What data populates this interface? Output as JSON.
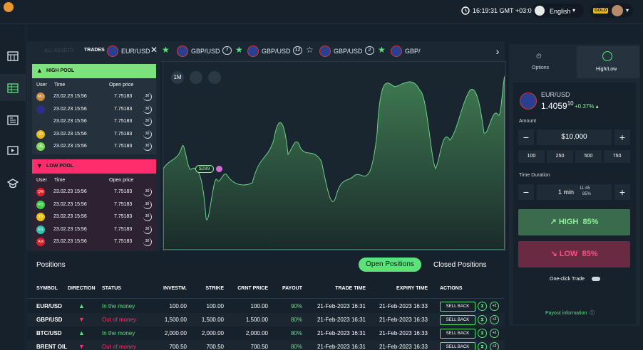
{
  "header": {
    "time": "16:19:31 GMT +03:00",
    "language": "English",
    "badge": "GOLD"
  },
  "asset_tabs": {
    "search": "ALL ASSETS",
    "tabs": [
      {
        "label": "EUR/USD"
      },
      {
        "label": "GBP/USD",
        "count": 7
      },
      {
        "label": "GBP/USD",
        "count": 12
      },
      {
        "label": "GBP/USD",
        "count": 2
      },
      {
        "label": "GBP/"
      }
    ]
  },
  "trades": {
    "title": "TRADES",
    "pools": [
      {
        "title": "HIGH POOL",
        "kind": "high",
        "columns": [
          "User",
          "Time",
          "Open price"
        ],
        "rows": [
          {
            "user": "MU",
            "avatar_color": "#c98a3a",
            "time": "23.02.23 15:56",
            "price": "7.75183",
            "timer": "30"
          },
          {
            "avatar_color": "#2b2f8a",
            "time": "23.02.23 15:56",
            "price": "7.75183",
            "timer": "30"
          },
          {
            "time": "23.02.23 15:56",
            "price": "7.75183",
            "timer": "30"
          },
          {
            "user": "IO",
            "avatar_color": "#e8b923",
            "time": "23.02.23 15:56",
            "price": "7.75183",
            "timer": "30"
          },
          {
            "user": "UE",
            "avatar_color": "#7dd957",
            "time": "23.02.23 15:56",
            "price": "7.75183",
            "timer": "30"
          }
        ]
      },
      {
        "title": "LOW POOL",
        "kind": "low",
        "columns": [
          "User",
          "Time",
          "Open price"
        ],
        "rows": [
          {
            "user": "QW",
            "avatar_color": "#d9202a",
            "time": "23.02.23 15:56",
            "price": "7.75183",
            "timer": "30"
          },
          {
            "user": "PO",
            "avatar_color": "#3fcf4a",
            "time": "23.02.23 15:56",
            "price": "7.75183",
            "timer": "30"
          },
          {
            "user": "TS",
            "avatar_color": "#e8c020",
            "time": "23.02.23 15:56",
            "price": "7.75183",
            "timer": "30"
          },
          {
            "user": "ES",
            "avatar_color": "#2ec4b0",
            "time": "23.02.23 15:56",
            "price": "7.75183",
            "timer": "30"
          },
          {
            "user": "AM",
            "avatar_color": "#d9202a",
            "time": "23.02.23 15:56",
            "price": "7.75183",
            "timer": "30"
          }
        ]
      }
    ]
  },
  "chart": {
    "interval": "1M",
    "price_marker": "$289"
  },
  "trade_panel": {
    "tabs": [
      "Options",
      "High/Low"
    ],
    "asset": "EUR/USD",
    "price": "1.4059",
    "price_sup": "10",
    "change": "+0.37%",
    "amount_label": "Amount",
    "amount": "$10,000",
    "presets": [
      "100",
      "250",
      "500",
      "750"
    ],
    "duration_label": "Time Duration",
    "duration": "1 min",
    "duration_time": "11:45",
    "duration_payout": "85%",
    "high": {
      "label": "HIGH",
      "payout": "85%"
    },
    "low": {
      "label": "LOW",
      "payout": "85%"
    },
    "one_click": "One-click Trade",
    "payout_info": "Payout information"
  },
  "positions": {
    "title": "Positions",
    "tabs": [
      "Open Positions",
      "Closed Positions"
    ],
    "columns": [
      "SYMBOL",
      "DIRECTION",
      "STATUS",
      "INVESTM.",
      "STRIKE",
      "CRNT PRICE",
      "PAYOUT",
      "TRADE TIME",
      "EXPIRY TIME",
      "ACTIONS"
    ],
    "action": "SELL BACK",
    "extend": "+2",
    "rows": [
      {
        "symbol": "EUR/USD",
        "direction": "up",
        "status": "In the money",
        "investment": "100.00",
        "strike": "100.00",
        "current": "100.00",
        "payout": "90%",
        "trade_time": "21-Feb-2023 16:31",
        "expiry_time": "21-Feb-2023 16:33"
      },
      {
        "symbol": "GBP/USD",
        "direction": "down",
        "status": "Out of money",
        "investment": "1,500.00",
        "strike": "1,500.00",
        "current": "1,500.00",
        "payout": "80%",
        "trade_time": "21-Feb-2023 16:31",
        "expiry_time": "21-Feb-2023 16:33"
      },
      {
        "symbol": "BTC/USD",
        "direction": "up",
        "status": "In the money",
        "investment": "2,000.00",
        "strike": "2,000.00",
        "current": "2,000.00",
        "payout": "80%",
        "trade_time": "21-Feb-2023 16:31",
        "expiry_time": "21-Feb-2023 16:33"
      },
      {
        "symbol": "BRENT OIL",
        "direction": "down",
        "status": "Out of money",
        "investment": "700.50",
        "strike": "700.50",
        "current": "700.50",
        "payout": "80%",
        "trade_time": "21-Feb-2023 16:31",
        "expiry_time": "21-Feb-2023 16:33"
      }
    ]
  }
}
